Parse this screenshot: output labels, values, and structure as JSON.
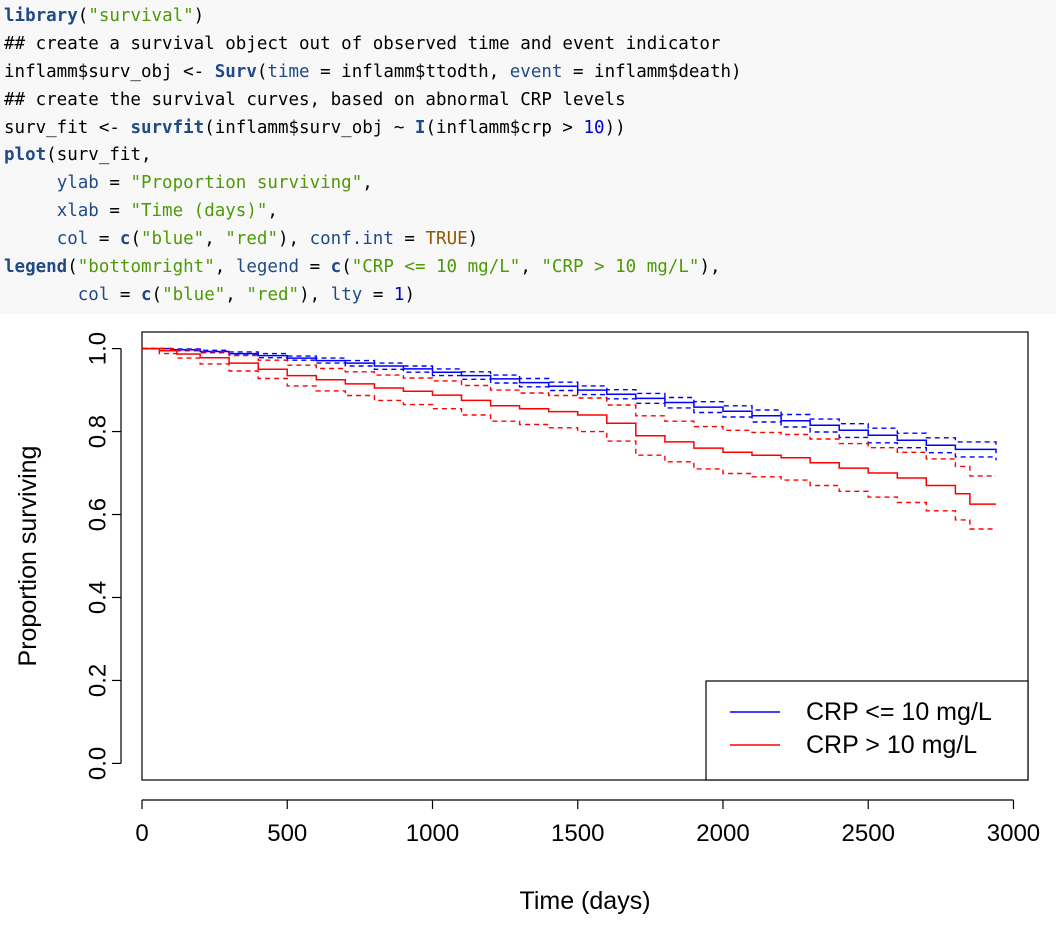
{
  "code_lines": [
    [
      {
        "t": "library",
        "c": "fn"
      },
      {
        "t": "(",
        "c": ""
      },
      {
        "t": "\"survival\"",
        "c": "str"
      },
      {
        "t": ")",
        "c": ""
      }
    ],
    [
      {
        "t": "## create a survival object out of observed time and event indicator",
        "c": "cm"
      }
    ],
    [
      {
        "t": "inflamm$surv_obj <- ",
        "c": ""
      },
      {
        "t": "Surv",
        "c": "fn"
      },
      {
        "t": "(",
        "c": ""
      },
      {
        "t": "time",
        "c": "arg"
      },
      {
        "t": " = inflamm$ttodth, ",
        "c": ""
      },
      {
        "t": "event",
        "c": "arg"
      },
      {
        "t": " = inflamm$death)",
        "c": ""
      }
    ],
    [
      {
        "t": "## create the survival curves, based on abnormal CRP levels",
        "c": "cm"
      }
    ],
    [
      {
        "t": "surv_fit <- ",
        "c": ""
      },
      {
        "t": "survfit",
        "c": "fn"
      },
      {
        "t": "(inflamm$surv_obj ~ ",
        "c": ""
      },
      {
        "t": "I",
        "c": "fn"
      },
      {
        "t": "(inflamm$crp > ",
        "c": ""
      },
      {
        "t": "10",
        "c": "num"
      },
      {
        "t": "))",
        "c": ""
      }
    ],
    [
      {
        "t": "plot",
        "c": "fn"
      },
      {
        "t": "(surv_fit,",
        "c": ""
      }
    ],
    [
      {
        "t": "     ",
        "c": ""
      },
      {
        "t": "ylab",
        "c": "arg"
      },
      {
        "t": " = ",
        "c": ""
      },
      {
        "t": "\"Proportion surviving\"",
        "c": "str"
      },
      {
        "t": ",",
        "c": ""
      }
    ],
    [
      {
        "t": "     ",
        "c": ""
      },
      {
        "t": "xlab",
        "c": "arg"
      },
      {
        "t": " = ",
        "c": ""
      },
      {
        "t": "\"Time (days)\"",
        "c": "str"
      },
      {
        "t": ",",
        "c": ""
      }
    ],
    [
      {
        "t": "     ",
        "c": ""
      },
      {
        "t": "col",
        "c": "arg"
      },
      {
        "t": " = ",
        "c": ""
      },
      {
        "t": "c",
        "c": "fn"
      },
      {
        "t": "(",
        "c": ""
      },
      {
        "t": "\"blue\"",
        "c": "str"
      },
      {
        "t": ", ",
        "c": ""
      },
      {
        "t": "\"red\"",
        "c": "str"
      },
      {
        "t": "), ",
        "c": ""
      },
      {
        "t": "conf.int",
        "c": "arg"
      },
      {
        "t": " = ",
        "c": ""
      },
      {
        "t": "TRUE",
        "c": "kw"
      },
      {
        "t": ")",
        "c": ""
      }
    ],
    [
      {
        "t": "legend",
        "c": "fn"
      },
      {
        "t": "(",
        "c": ""
      },
      {
        "t": "\"bottomright\"",
        "c": "str"
      },
      {
        "t": ", ",
        "c": ""
      },
      {
        "t": "legend",
        "c": "arg"
      },
      {
        "t": " = ",
        "c": ""
      },
      {
        "t": "c",
        "c": "fn"
      },
      {
        "t": "(",
        "c": ""
      },
      {
        "t": "\"CRP <= 10 mg/L\"",
        "c": "str"
      },
      {
        "t": ", ",
        "c": ""
      },
      {
        "t": "\"CRP > 10 mg/L\"",
        "c": "str"
      },
      {
        "t": "),",
        "c": ""
      }
    ],
    [
      {
        "t": "       ",
        "c": ""
      },
      {
        "t": "col",
        "c": "arg"
      },
      {
        "t": " = ",
        "c": ""
      },
      {
        "t": "c",
        "c": "fn"
      },
      {
        "t": "(",
        "c": ""
      },
      {
        "t": "\"blue\"",
        "c": "str"
      },
      {
        "t": ", ",
        "c": ""
      },
      {
        "t": "\"red\"",
        "c": "str"
      },
      {
        "t": "), ",
        "c": ""
      },
      {
        "t": "lty",
        "c": "arg"
      },
      {
        "t": " = ",
        "c": ""
      },
      {
        "t": "1",
        "c": "num"
      },
      {
        "t": ")",
        "c": ""
      }
    ]
  ],
  "chart_data": {
    "type": "line",
    "title": "",
    "xlabel": "Time (days)",
    "ylabel": "Proportion surviving",
    "xlim": [
      0,
      3050
    ],
    "ylim": [
      -0.04,
      1.04
    ],
    "x_ticks": [
      0,
      500,
      1000,
      1500,
      2000,
      2500,
      3000
    ],
    "y_ticks": [
      0.0,
      0.2,
      0.4,
      0.6,
      0.8,
      1.0
    ],
    "x_tick_labels": [
      "0",
      "500",
      "1000",
      "1500",
      "2000",
      "2500",
      "3000"
    ],
    "y_tick_labels": [
      "0.0",
      "0.2",
      "0.4",
      "0.6",
      "0.8",
      "1.0"
    ],
    "grid": false,
    "legend_position": "bottom-right",
    "series": [
      {
        "name": "CRP <= 10 mg/L",
        "color": "#0000ff",
        "points": [
          [
            0,
            1.0
          ],
          [
            100,
            0.997
          ],
          [
            200,
            0.993
          ],
          [
            300,
            0.988
          ],
          [
            400,
            0.983
          ],
          [
            500,
            0.977
          ],
          [
            600,
            0.971
          ],
          [
            700,
            0.965
          ],
          [
            800,
            0.958
          ],
          [
            900,
            0.951
          ],
          [
            1000,
            0.943
          ],
          [
            1100,
            0.935
          ],
          [
            1200,
            0.927
          ],
          [
            1300,
            0.918
          ],
          [
            1400,
            0.909
          ],
          [
            1500,
            0.9
          ],
          [
            1600,
            0.89
          ],
          [
            1700,
            0.88
          ],
          [
            1800,
            0.87
          ],
          [
            1900,
            0.859
          ],
          [
            2000,
            0.849
          ],
          [
            2100,
            0.838
          ],
          [
            2200,
            0.826
          ],
          [
            2300,
            0.815
          ],
          [
            2400,
            0.803
          ],
          [
            2500,
            0.791
          ],
          [
            2600,
            0.779
          ],
          [
            2700,
            0.767
          ],
          [
            2800,
            0.757
          ],
          [
            2940,
            0.748
          ]
        ],
        "ci_upper": [
          [
            0,
            1.0
          ],
          [
            100,
            0.999
          ],
          [
            200,
            0.996
          ],
          [
            300,
            0.992
          ],
          [
            400,
            0.988
          ],
          [
            500,
            0.982
          ],
          [
            600,
            0.977
          ],
          [
            700,
            0.971
          ],
          [
            800,
            0.965
          ],
          [
            900,
            0.958
          ],
          [
            1000,
            0.951
          ],
          [
            1100,
            0.944
          ],
          [
            1200,
            0.936
          ],
          [
            1300,
            0.928
          ],
          [
            1400,
            0.919
          ],
          [
            1500,
            0.91
          ],
          [
            1600,
            0.901
          ],
          [
            1700,
            0.892
          ],
          [
            1800,
            0.882
          ],
          [
            1900,
            0.872
          ],
          [
            2000,
            0.862
          ],
          [
            2100,
            0.852
          ],
          [
            2200,
            0.841
          ],
          [
            2300,
            0.83
          ],
          [
            2400,
            0.819
          ],
          [
            2500,
            0.808
          ],
          [
            2600,
            0.796
          ],
          [
            2700,
            0.785
          ],
          [
            2800,
            0.775
          ],
          [
            2940,
            0.764
          ]
        ],
        "ci_lower": [
          [
            0,
            1.0
          ],
          [
            100,
            0.995
          ],
          [
            200,
            0.99
          ],
          [
            300,
            0.984
          ],
          [
            400,
            0.978
          ],
          [
            500,
            0.972
          ],
          [
            600,
            0.965
          ],
          [
            700,
            0.958
          ],
          [
            800,
            0.95
          ],
          [
            900,
            0.943
          ],
          [
            1000,
            0.935
          ],
          [
            1100,
            0.926
          ],
          [
            1200,
            0.917
          ],
          [
            1300,
            0.908
          ],
          [
            1400,
            0.899
          ],
          [
            1500,
            0.889
          ],
          [
            1600,
            0.879
          ],
          [
            1700,
            0.868
          ],
          [
            1800,
            0.857
          ],
          [
            1900,
            0.846
          ],
          [
            2000,
            0.835
          ],
          [
            2100,
            0.823
          ],
          [
            2200,
            0.811
          ],
          [
            2300,
            0.799
          ],
          [
            2400,
            0.786
          ],
          [
            2500,
            0.773
          ],
          [
            2600,
            0.761
          ],
          [
            2700,
            0.749
          ],
          [
            2800,
            0.739
          ],
          [
            2940,
            0.731
          ]
        ]
      },
      {
        "name": "CRP > 10 mg/L",
        "color": "#ff0000",
        "points": [
          [
            0,
            1.0
          ],
          [
            60,
            0.995
          ],
          [
            120,
            0.987
          ],
          [
            200,
            0.978
          ],
          [
            300,
            0.965
          ],
          [
            400,
            0.95
          ],
          [
            500,
            0.935
          ],
          [
            600,
            0.925
          ],
          [
            700,
            0.915
          ],
          [
            800,
            0.905
          ],
          [
            900,
            0.897
          ],
          [
            1000,
            0.888
          ],
          [
            1100,
            0.875
          ],
          [
            1200,
            0.862
          ],
          [
            1300,
            0.855
          ],
          [
            1400,
            0.848
          ],
          [
            1500,
            0.84
          ],
          [
            1600,
            0.82
          ],
          [
            1700,
            0.79
          ],
          [
            1800,
            0.775
          ],
          [
            1900,
            0.76
          ],
          [
            2000,
            0.75
          ],
          [
            2100,
            0.743
          ],
          [
            2200,
            0.737
          ],
          [
            2300,
            0.725
          ],
          [
            2400,
            0.712
          ],
          [
            2500,
            0.7
          ],
          [
            2600,
            0.688
          ],
          [
            2700,
            0.67
          ],
          [
            2800,
            0.65
          ],
          [
            2850,
            0.625
          ],
          [
            2940,
            0.625
          ]
        ],
        "ci_upper": [
          [
            0,
            1.0
          ],
          [
            60,
            1.0
          ],
          [
            120,
            0.997
          ],
          [
            200,
            0.992
          ],
          [
            300,
            0.983
          ],
          [
            400,
            0.972
          ],
          [
            500,
            0.96
          ],
          [
            600,
            0.952
          ],
          [
            700,
            0.944
          ],
          [
            800,
            0.936
          ],
          [
            900,
            0.929
          ],
          [
            1000,
            0.922
          ],
          [
            1100,
            0.911
          ],
          [
            1200,
            0.9
          ],
          [
            1300,
            0.893
          ],
          [
            1400,
            0.887
          ],
          [
            1500,
            0.881
          ],
          [
            1600,
            0.864
          ],
          [
            1700,
            0.838
          ],
          [
            1800,
            0.825
          ],
          [
            1900,
            0.812
          ],
          [
            2000,
            0.803
          ],
          [
            2100,
            0.798
          ],
          [
            2200,
            0.793
          ],
          [
            2300,
            0.782
          ],
          [
            2400,
            0.771
          ],
          [
            2500,
            0.761
          ],
          [
            2600,
            0.75
          ],
          [
            2700,
            0.734
          ],
          [
            2800,
            0.716
          ],
          [
            2850,
            0.693
          ],
          [
            2940,
            0.693
          ]
        ],
        "ci_lower": [
          [
            0,
            1.0
          ],
          [
            60,
            0.988
          ],
          [
            120,
            0.977
          ],
          [
            200,
            0.963
          ],
          [
            300,
            0.946
          ],
          [
            400,
            0.928
          ],
          [
            500,
            0.91
          ],
          [
            600,
            0.898
          ],
          [
            700,
            0.887
          ],
          [
            800,
            0.875
          ],
          [
            900,
            0.865
          ],
          [
            1000,
            0.855
          ],
          [
            1100,
            0.84
          ],
          [
            1200,
            0.825
          ],
          [
            1300,
            0.817
          ],
          [
            1400,
            0.809
          ],
          [
            1500,
            0.8
          ],
          [
            1600,
            0.777
          ],
          [
            1700,
            0.743
          ],
          [
            1800,
            0.727
          ],
          [
            1900,
            0.71
          ],
          [
            2000,
            0.699
          ],
          [
            2100,
            0.691
          ],
          [
            2200,
            0.683
          ],
          [
            2300,
            0.67
          ],
          [
            2400,
            0.656
          ],
          [
            2500,
            0.642
          ],
          [
            2600,
            0.629
          ],
          [
            2700,
            0.609
          ],
          [
            2800,
            0.587
          ],
          [
            2850,
            0.565
          ],
          [
            2940,
            0.565
          ]
        ]
      }
    ]
  }
}
